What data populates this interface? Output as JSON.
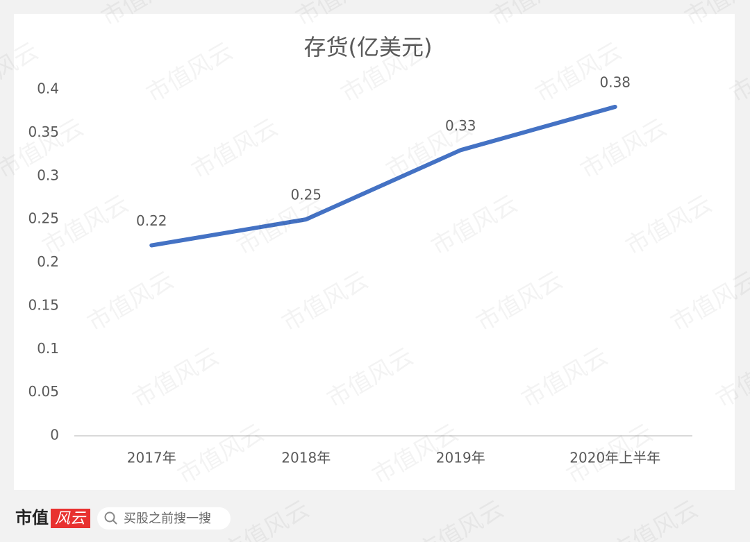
{
  "chart_data": {
    "type": "line",
    "title": "存货(亿美元)",
    "categories": [
      "2017年",
      "2018年",
      "2019年",
      "2020年上半年"
    ],
    "values": [
      0.22,
      0.25,
      0.33,
      0.38
    ],
    "color": "#4472c4",
    "ylim": [
      0,
      0.4
    ],
    "yticks": [
      0,
      0.05,
      0.1,
      0.15,
      0.2,
      0.25,
      0.3,
      0.35,
      0.4
    ],
    "grid": false
  },
  "watermark": "市值风云",
  "footer": {
    "brand": "市值",
    "brand_mark": "风云",
    "search_placeholder": "买股之前搜一搜"
  }
}
